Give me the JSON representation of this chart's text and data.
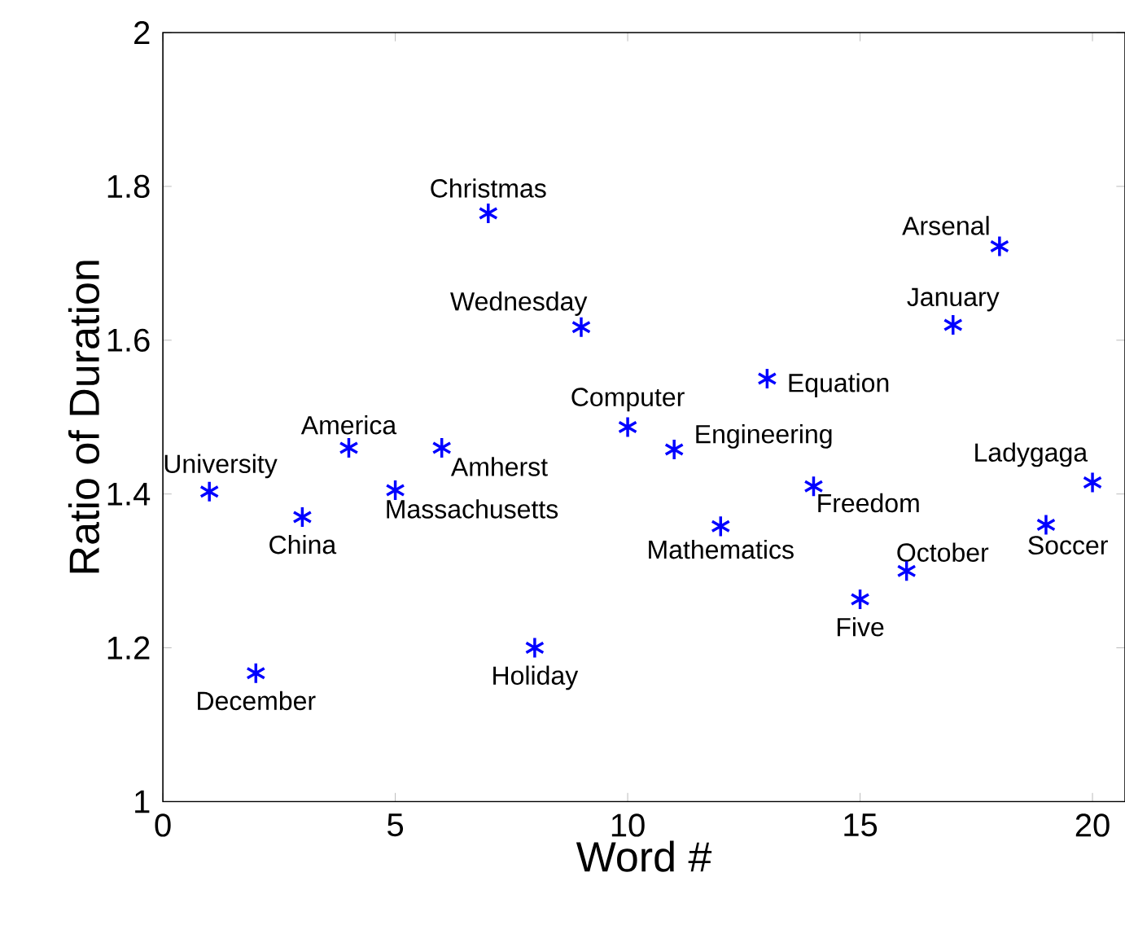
{
  "chart_data": {
    "type": "scatter",
    "xlabel": "Word #",
    "ylabel": "Ratio of Duration",
    "marker": "cross",
    "xlim": [
      0,
      20.7
    ],
    "ylim": [
      1,
      2
    ],
    "xticks": [
      0,
      5,
      10,
      15,
      20
    ],
    "yticks": [
      1,
      1.2,
      1.4,
      1.6,
      1.8,
      2
    ],
    "series": [
      {
        "color": "#0000ff",
        "x": [
          1,
          2,
          3,
          4,
          5,
          6,
          7,
          8,
          9,
          10,
          11,
          12,
          13,
          14,
          15,
          16,
          17,
          18,
          19,
          20
        ],
        "values": [
          1.403,
          1.167,
          1.37,
          1.46,
          1.405,
          1.46,
          1.765,
          1.2,
          1.617,
          1.487,
          1.458,
          1.358,
          1.55,
          1.41,
          1.263,
          1.3,
          1.62,
          1.722,
          1.36,
          1.415
        ]
      }
    ],
    "annotations": [
      {
        "text": "University",
        "x": 1,
        "y": 1.403
      },
      {
        "text": "December",
        "x": 2,
        "y": 1.167
      },
      {
        "text": "China",
        "x": 3,
        "y": 1.37
      },
      {
        "text": "America",
        "x": 4,
        "y": 1.46
      },
      {
        "text": "Massachusetts",
        "x": 5,
        "y": 1.405
      },
      {
        "text": "Amherst",
        "x": 6,
        "y": 1.46
      },
      {
        "text": "Christmas",
        "x": 7,
        "y": 1.765
      },
      {
        "text": "Holiday",
        "x": 8,
        "y": 1.2
      },
      {
        "text": "Wednesday",
        "x": 9,
        "y": 1.617
      },
      {
        "text": "Computer",
        "x": 10,
        "y": 1.487
      },
      {
        "text": "Engineering",
        "x": 11,
        "y": 1.458
      },
      {
        "text": "Mathematics",
        "x": 12,
        "y": 1.358
      },
      {
        "text": "Equation",
        "x": 13,
        "y": 1.55
      },
      {
        "text": "Freedom",
        "x": 14,
        "y": 1.41
      },
      {
        "text": "Five",
        "x": 15,
        "y": 1.263
      },
      {
        "text": "October",
        "x": 16,
        "y": 1.3
      },
      {
        "text": "January",
        "x": 17,
        "y": 1.62
      },
      {
        "text": "Arsenal",
        "x": 18,
        "y": 1.722
      },
      {
        "text": "Soccer",
        "x": 19,
        "y": 1.36
      },
      {
        "text": "Ladygaga",
        "x": 20,
        "y": 1.415
      }
    ]
  }
}
